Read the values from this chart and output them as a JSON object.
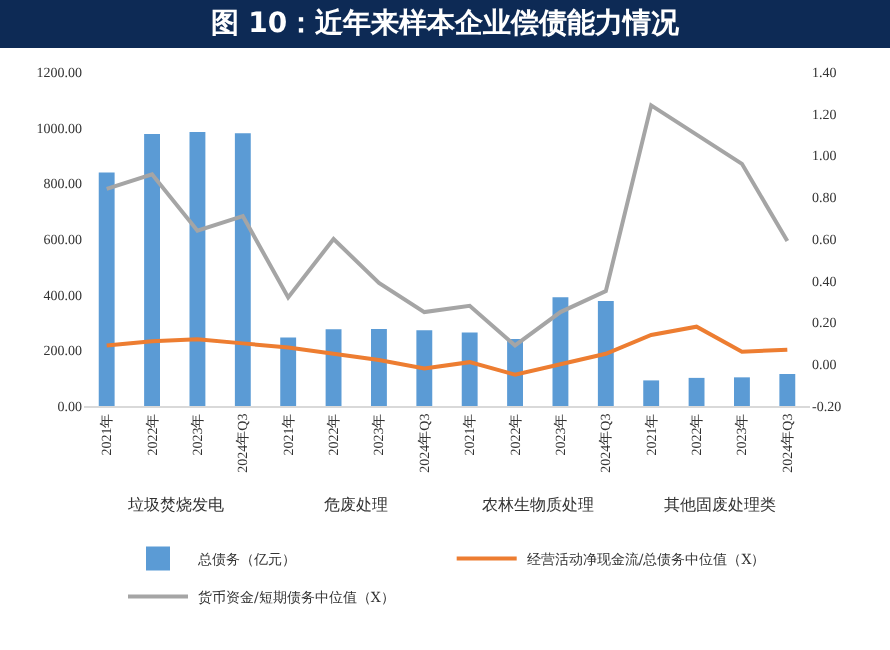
{
  "chart_data": {
    "type": "bar",
    "title": "图 10：近年来样本企业偿债能力情况",
    "categories": [
      "2021年",
      "2022年",
      "2023年",
      "2024年Q3",
      "2021年",
      "2022年",
      "2023年",
      "2024年Q3",
      "2021年",
      "2022年",
      "2023年",
      "2024年Q3",
      "2021年",
      "2022年",
      "2023年",
      "2024年Q3"
    ],
    "annotations": [
      "垃圾焚烧发电",
      "危废处理",
      "农林生物质处理",
      "其他固废处理类"
    ],
    "series": [
      {
        "name": "总债务（亿元）",
        "color": "#5b9bd5",
        "values": [
          839,
          977,
          984,
          980,
          246,
          276,
          277,
          272,
          264,
          241,
          391,
          377,
          92,
          101,
          103,
          115
        ]
      },
      {
        "name": "经营活动净现金流/总债务中位值（X）",
        "type": "line",
        "axis": "y2",
        "color": "#ed7d31",
        "values": [
          0.09,
          0.11,
          0.12,
          0.1,
          0.08,
          0.05,
          0.02,
          -0.02,
          0.01,
          -0.05,
          0,
          0.05,
          0.14,
          0.18,
          0.06,
          0.07
        ]
      },
      {
        "name": "货币资金/短期债务中位值（X）",
        "type": "line",
        "axis": "y2",
        "color": "#a5a5a5",
        "values": [
          0.84,
          0.91,
          0.64,
          0.71,
          0.32,
          0.6,
          0.39,
          0.25,
          0.28,
          0.09,
          0.25,
          0.35,
          1.24,
          1.1,
          0.96,
          0.59
        ]
      }
    ],
    "ylim": [
      0,
      1200
    ],
    "yticks": [
      {
        "value": 0,
        "label": "0.00"
      },
      {
        "value": 200,
        "label": "200.00"
      },
      {
        "value": 400,
        "label": "400.00"
      },
      {
        "value": 600,
        "label": "600.00"
      },
      {
        "value": 800,
        "label": "800.00"
      },
      {
        "value": 1000,
        "label": "1000.00"
      },
      {
        "value": 1200,
        "label": "1200.00"
      }
    ],
    "y2lim": [
      -0.2,
      1.4
    ],
    "y2ticks": [
      {
        "value": -0.2,
        "label": "-0.20"
      },
      {
        "value": 0,
        "label": "0.00"
      },
      {
        "value": 0.2,
        "label": "0.20"
      },
      {
        "value": 0.4,
        "label": "0.40"
      },
      {
        "value": 0.6,
        "label": "0.60"
      },
      {
        "value": 0.8,
        "label": "0.80"
      },
      {
        "value": 1,
        "label": "1.00"
      },
      {
        "value": 1.2,
        "label": "1.20"
      },
      {
        "value": 1.4,
        "label": "1.40"
      }
    ],
    "grid": false,
    "legend": "bottom",
    "marker": "none",
    "line_style": "solid"
  }
}
